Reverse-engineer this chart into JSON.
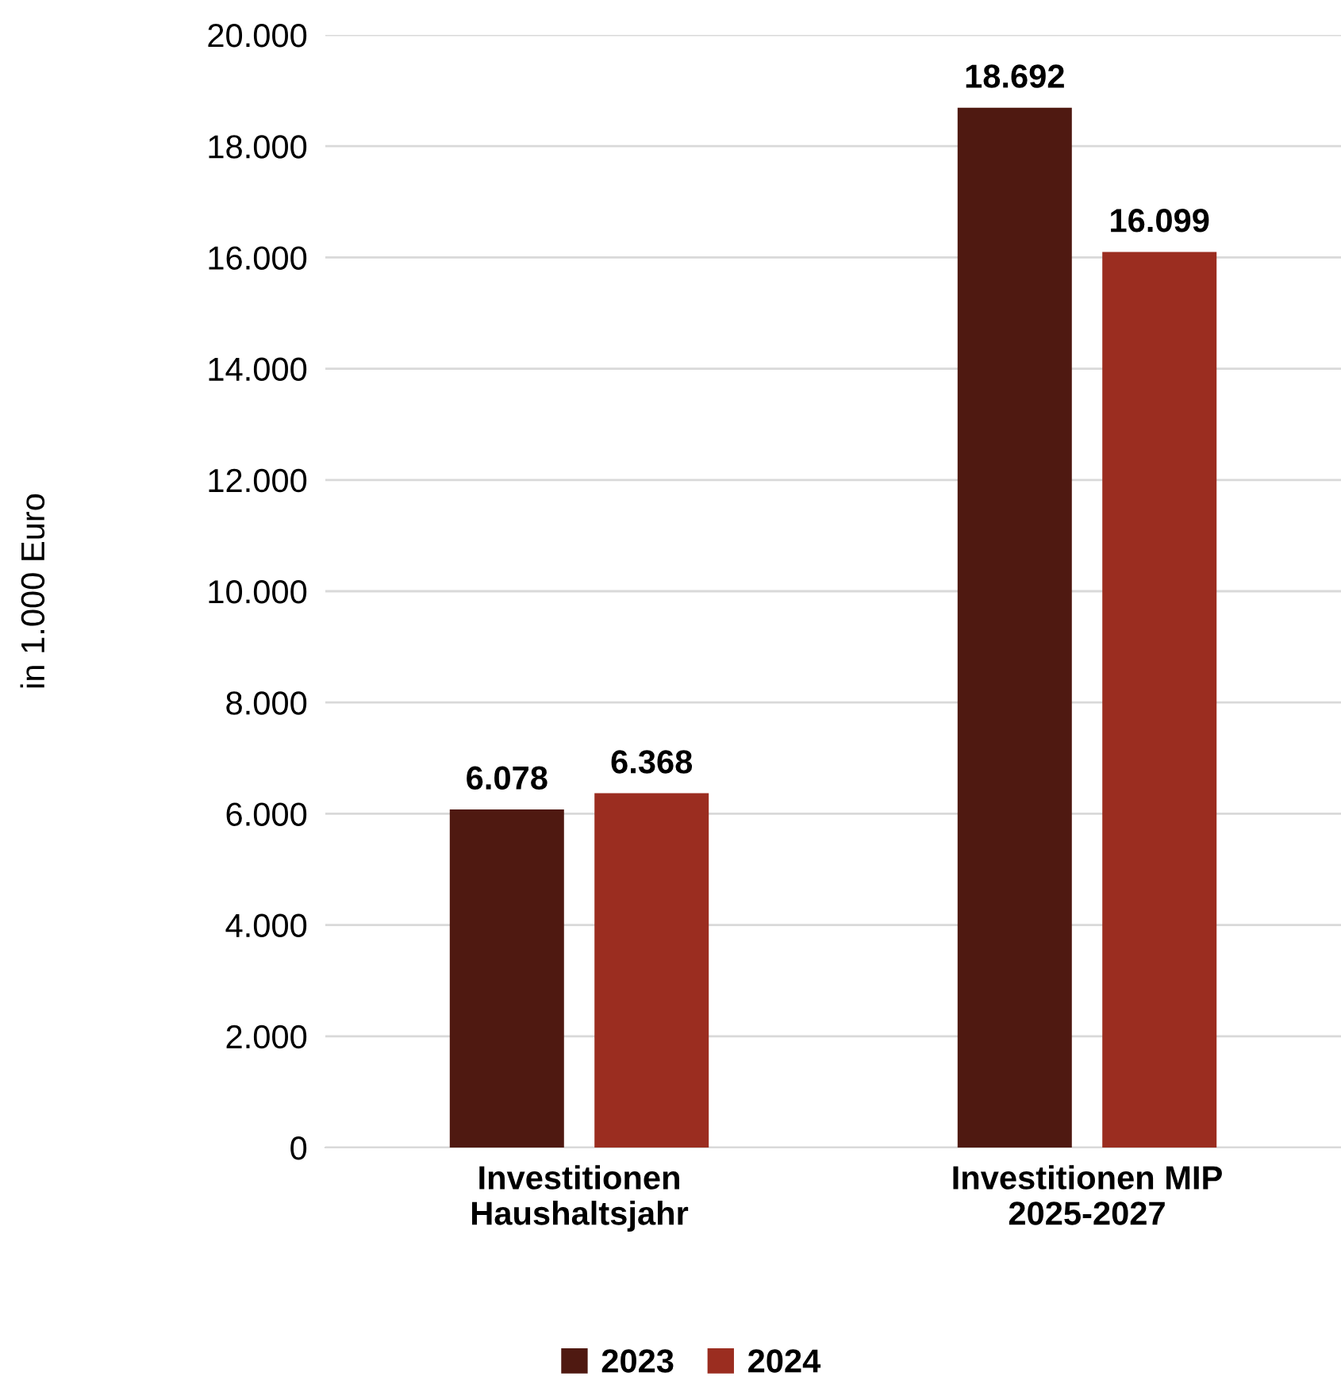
{
  "chart_data": {
    "type": "bar",
    "ylabel": "in 1.000 Euro",
    "categories": [
      "Investitionen\nHaushaltsjahr",
      "Investitionen MIP\n2025-2027"
    ],
    "series": [
      {
        "name": "2023",
        "color": "#4f1911",
        "values": [
          6078,
          18692
        ],
        "value_labels": [
          "6.078",
          "18.692"
        ]
      },
      {
        "name": "2024",
        "color": "#9b2d20",
        "values": [
          6368,
          16099
        ],
        "value_labels": [
          "6.368",
          "16.099"
        ]
      }
    ],
    "ylim": [
      0,
      20000
    ],
    "yticks": [
      {
        "value": 0,
        "label": "0"
      },
      {
        "value": 2000,
        "label": "2.000"
      },
      {
        "value": 4000,
        "label": "4.000"
      },
      {
        "value": 6000,
        "label": "6.000"
      },
      {
        "value": 8000,
        "label": "8.000"
      },
      {
        "value": 10000,
        "label": "10.000"
      },
      {
        "value": 12000,
        "label": "12.000"
      },
      {
        "value": 14000,
        "label": "14.000"
      },
      {
        "value": 16000,
        "label": "16.000"
      },
      {
        "value": 18000,
        "label": "18.000"
      },
      {
        "value": 20000,
        "label": "20.000"
      }
    ],
    "grid": "y",
    "legend": "bottom"
  }
}
